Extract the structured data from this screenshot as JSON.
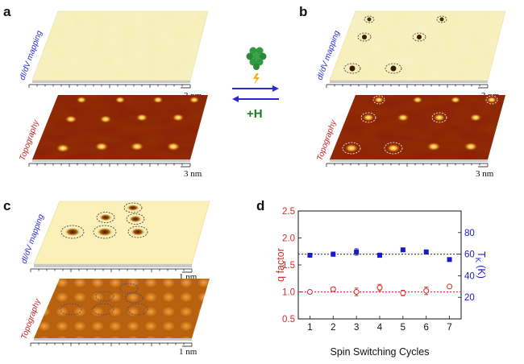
{
  "panels": {
    "a": {
      "letter": "a",
      "map_label": "dI/dV mapping",
      "topo_label": "Topography",
      "scale_top": "3 nm",
      "scale_bottom": "3 nm"
    },
    "b": {
      "letter": "b",
      "map_label": "dI/dV mapping",
      "topo_label": "Topography",
      "scale_top": "3 nm",
      "scale_bottom": "3 nm"
    },
    "c": {
      "letter": "c",
      "map_label": "dI/dV mapping",
      "topo_label": "Topography",
      "scale_top": "1 nm",
      "scale_bottom": "1 nm"
    },
    "d": {
      "letter": "d"
    }
  },
  "arrows": {
    "hydrogen_label": "+H"
  },
  "colors": {
    "map_surface": "#f7f2c5",
    "topo_surface": "#8a1e08",
    "left_axis": "#d42a2a",
    "right_axis": "#1a1acc",
    "arrow": "#2a2ad0",
    "h_label": "#1e7a1e"
  },
  "chart_data": {
    "type": "scatter",
    "xlabel": "Spin Switching Cycles",
    "x": [
      1,
      2,
      3,
      4,
      5,
      6,
      7
    ],
    "xlim": [
      0.5,
      7.5
    ],
    "series": [
      {
        "axis": "left",
        "marker": "open-circle",
        "color": "#d42a2a",
        "values": [
          1.0,
          1.05,
          1.0,
          1.08,
          0.98,
          1.02,
          1.1
        ],
        "errors": [
          0.03,
          0.04,
          0.07,
          0.06,
          0.05,
          0.07,
          0.03
        ]
      },
      {
        "axis": "right",
        "marker": "filled-square",
        "color": "#1a1acc",
        "values": [
          59,
          60,
          62,
          59,
          64,
          62,
          55
        ],
        "errors": [
          1.5,
          2,
          3,
          2,
          1.5,
          2,
          1
        ]
      }
    ],
    "left_axis": {
      "label": "q factor",
      "lim": [
        0.5,
        2.5
      ],
      "ticks": [
        "0.5",
        "1.0",
        "1.5",
        "2.0",
        "2.5"
      ]
    },
    "right_axis": {
      "label": "T_K (K)",
      "label_main": "T",
      "label_sub": "K",
      "label_unit": " (K)",
      "lim": [
        0,
        100
      ],
      "ticks": [
        "20",
        "40",
        "60",
        "80"
      ]
    },
    "xticks": [
      "1",
      "2",
      "3",
      "4",
      "5",
      "6",
      "7"
    ],
    "ref_lines": [
      {
        "axis": "left",
        "value": 1.0,
        "style": "dotted",
        "color": "#d42a2a"
      },
      {
        "axis": "right",
        "value": 60,
        "style": "dotted",
        "color": "#1a1acc"
      }
    ]
  }
}
